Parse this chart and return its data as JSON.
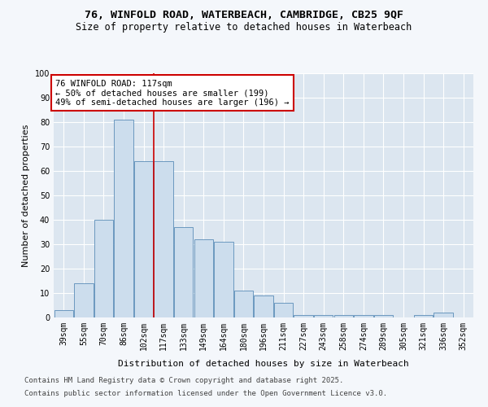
{
  "title_line1": "76, WINFOLD ROAD, WATERBEACH, CAMBRIDGE, CB25 9QF",
  "title_line2": "Size of property relative to detached houses in Waterbeach",
  "xlabel": "Distribution of detached houses by size in Waterbeach",
  "ylabel": "Number of detached properties",
  "categories": [
    "39sqm",
    "55sqm",
    "70sqm",
    "86sqm",
    "102sqm",
    "117sqm",
    "133sqm",
    "149sqm",
    "164sqm",
    "180sqm",
    "196sqm",
    "211sqm",
    "227sqm",
    "243sqm",
    "258sqm",
    "274sqm",
    "289sqm",
    "305sqm",
    "321sqm",
    "336sqm",
    "352sqm"
  ],
  "values": [
    3,
    14,
    40,
    81,
    64,
    64,
    37,
    32,
    31,
    11,
    9,
    6,
    1,
    1,
    1,
    1,
    1,
    0,
    1,
    2,
    0
  ],
  "bar_color": "#ccdded",
  "bar_edge_color": "#5b8db8",
  "vline_index": 4.5,
  "annotation_text": "76 WINFOLD ROAD: 117sqm\n← 50% of detached houses are smaller (199)\n49% of semi-detached houses are larger (196) →",
  "annotation_box_facecolor": "#ffffff",
  "annotation_box_edgecolor": "#cc0000",
  "vline_color": "#cc0000",
  "footnote1": "Contains HM Land Registry data © Crown copyright and database right 2025.",
  "footnote2": "Contains public sector information licensed under the Open Government Licence v3.0.",
  "ylim": [
    0,
    100
  ],
  "yticks": [
    0,
    10,
    20,
    30,
    40,
    50,
    60,
    70,
    80,
    90,
    100
  ],
  "fig_bg_color": "#f4f7fb",
  "plot_bg_color": "#dce6f0",
  "title_fontsize": 9.5,
  "subtitle_fontsize": 8.5,
  "ylabel_fontsize": 8,
  "xlabel_fontsize": 8,
  "tick_fontsize": 7,
  "annotation_fontsize": 7.5,
  "footnote_fontsize": 6.5
}
